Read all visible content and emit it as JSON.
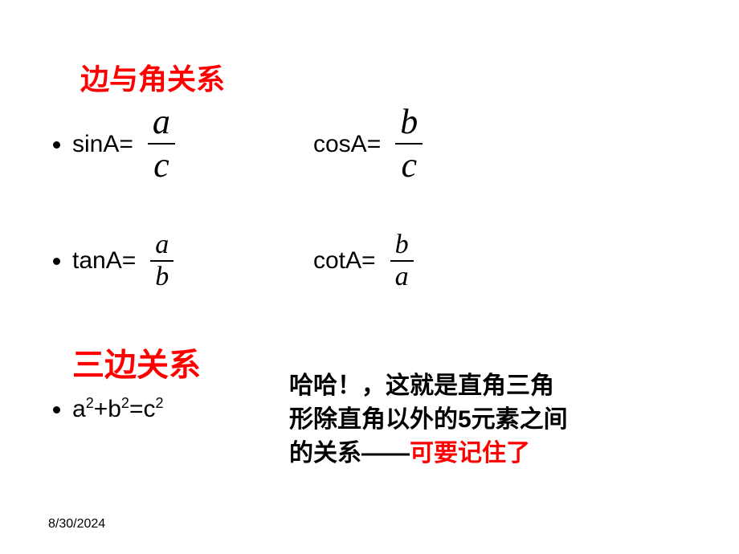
{
  "heading1": "边与角关系",
  "heading2": "三边关系",
  "formulas": {
    "sin": {
      "label": "sinA=",
      "num": "a",
      "den": "c"
    },
    "cos": {
      "label": "cosA=",
      "num": "b",
      "den": "c"
    },
    "tan": {
      "label": "tanA=",
      "num": "a",
      "den": "b"
    },
    "cot": {
      "label": "cotA=",
      "num": "b",
      "den": "a"
    }
  },
  "pythagoras_html": "a<sup>2</sup>+b<sup>2</sup>=c<sup>2</sup>",
  "note_line1": "哈哈！，这就是直角三角",
  "note_line2a": "形除直角以外的5元素之间",
  "note_line3a": "的关系——",
  "note_line3b": "可要记住了",
  "date": "8/30/2024",
  "colors": {
    "red": "#ff0000",
    "black": "#000000",
    "background": "#ffffff"
  },
  "font_sizes": {
    "heading": 36,
    "body": 30,
    "frac_big": 44,
    "frac_mid": 34,
    "date": 16
  }
}
